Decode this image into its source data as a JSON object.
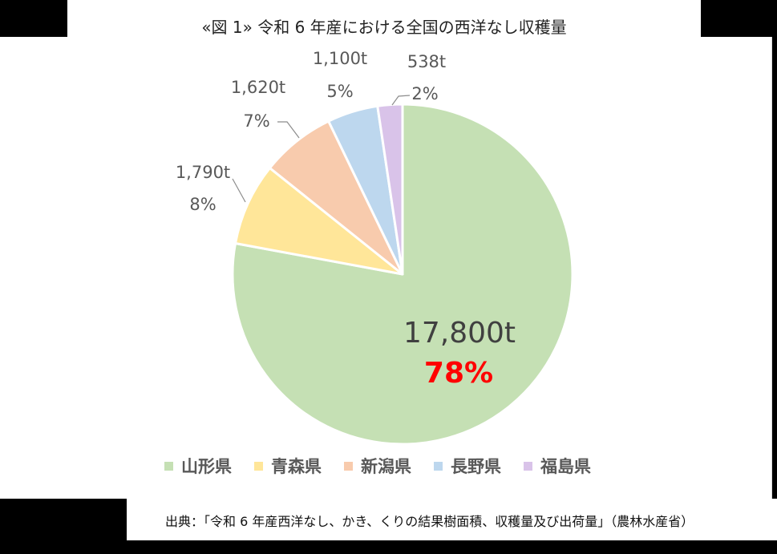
{
  "title": "«図 1» 令和 6 年産における全国の西洋なし収穫量",
  "source": "出典：「令和 6 年産西洋なし、かき、くりの結果樹面積、収穫量及び出荷量」（農林水産省）",
  "chart_data": {
    "type": "pie",
    "title": "«図 1» 令和 6 年産における全国の西洋なし収穫量",
    "start_angle_deg": 0,
    "direction": "clockwise",
    "legend_position": "bottom",
    "slices": [
      {
        "name": "山形県",
        "value": 17800,
        "value_label": "17,800t",
        "percent_label": "78%",
        "color": "#c5e0b4",
        "percent_color": "#ff0000"
      },
      {
        "name": "青森県",
        "value": 1790,
        "value_label": "1,790t",
        "percent_label": "8%",
        "color": "#ffe699",
        "percent_color": "#595959"
      },
      {
        "name": "新潟県",
        "value": 1620,
        "value_label": "1,620t",
        "percent_label": "7%",
        "color": "#f8cbad",
        "percent_color": "#595959"
      },
      {
        "name": "長野県",
        "value": 1100,
        "value_label": "1,100t",
        "percent_label": "5%",
        "color": "#bdd7ee",
        "percent_color": "#595959"
      },
      {
        "name": "福島県",
        "value": 538,
        "value_label": "538t",
        "percent_label": "2%",
        "color": "#d9c3e9",
        "percent_color": "#595959"
      }
    ]
  }
}
